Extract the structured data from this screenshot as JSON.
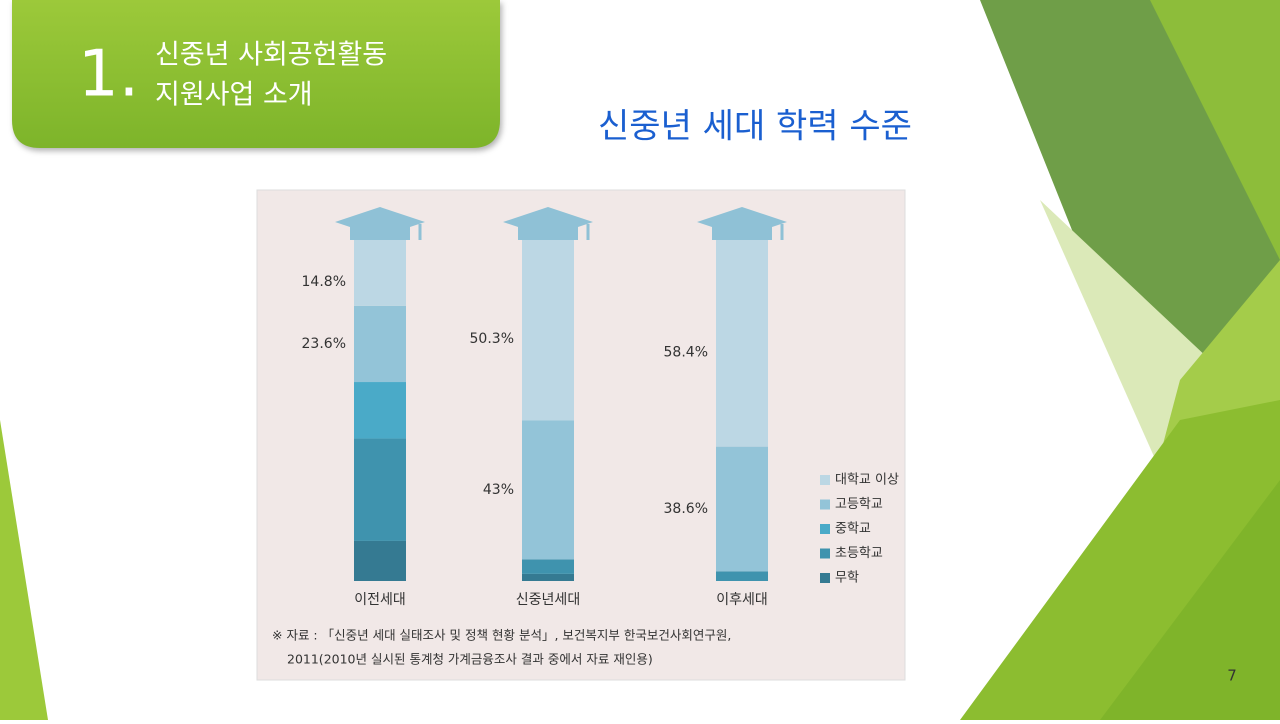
{
  "slide": {
    "section_number": "1.",
    "section_title_line1": "신중년 사회공헌활동",
    "section_title_line2": "지원사업 소개",
    "title": "신중년 세대 학력 수준",
    "source_line1": "※ 자료 : 「신중년 세대 실태조사 및 정책 현황 분석」, 보건복지부 한국보건사회연구원,",
    "source_line2": "2011(2010년 실시된 통계청 가계금융조사 결과 중에서 자료 재인용)",
    "page_number": "7"
  },
  "chart_data": {
    "type": "bar",
    "stacked": true,
    "legend": "right",
    "categories": [
      "이전세대",
      "신중년세대",
      "이후세대"
    ],
    "ylim": [
      0,
      100
    ],
    "series": [
      {
        "name": "대학교 이상",
        "color": "#bcd7e4",
        "values": [
          14.8,
          50.3,
          58.4
        ],
        "value_labels": [
          "14.8%",
          "50.3%",
          "58.4%"
        ]
      },
      {
        "name": "고등학교",
        "color": "#93c4d8",
        "values": [
          23.6,
          43,
          38.6
        ],
        "value_labels": [
          "23.6%",
          "43%",
          "38.6%"
        ]
      },
      {
        "name": "중학교",
        "color": "#4aaac8",
        "values": [
          17.5,
          0,
          0
        ]
      },
      {
        "name": "초등학교",
        "color": "#3f93ae",
        "values": [
          31.7,
          4.5,
          3.0
        ]
      },
      {
        "name": "무학",
        "color": "#357a92",
        "values": [
          12.4,
          2.2,
          0
        ]
      }
    ]
  }
}
